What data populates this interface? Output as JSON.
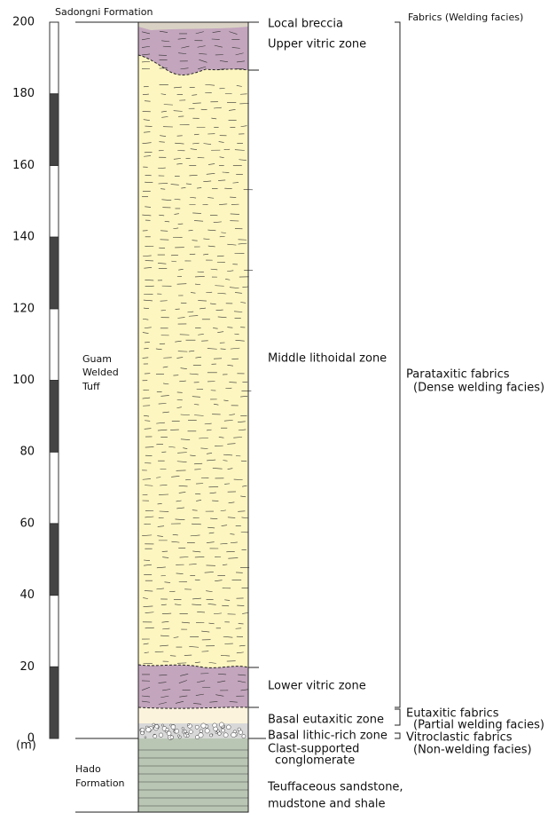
{
  "scale": {
    "unit": "(m)",
    "ticks": [
      0,
      20,
      40,
      60,
      80,
      100,
      120,
      140,
      160,
      180,
      200
    ]
  },
  "formations": {
    "top": "Sadongni Formation",
    "middle": [
      "Guam",
      "Welded",
      "Tuff"
    ],
    "bottom": [
      "Hado",
      "Formation"
    ]
  },
  "zones": [
    "Local breccia",
    "Upper vitric zone",
    "Middle lithoidal zone",
    "Lower vitric zone",
    "Basal eutaxitic zone",
    "Basal lithic-rich zone",
    "Clast-supported",
    "conglomerate",
    "Teuffaceous sandstone,",
    "mudstone and shale"
  ],
  "fabrics": {
    "header": "Fabrics (Welding facies)",
    "groups": [
      {
        "name": "Parataxitic fabrics",
        "facies": "(Dense welding facies)"
      },
      {
        "name": "Eutaxitic fabrics",
        "facies": "(Partial welding facies)"
      },
      {
        "name": "Vitroclastic fabrics",
        "facies": "(Non-welding facies)"
      }
    ]
  }
}
